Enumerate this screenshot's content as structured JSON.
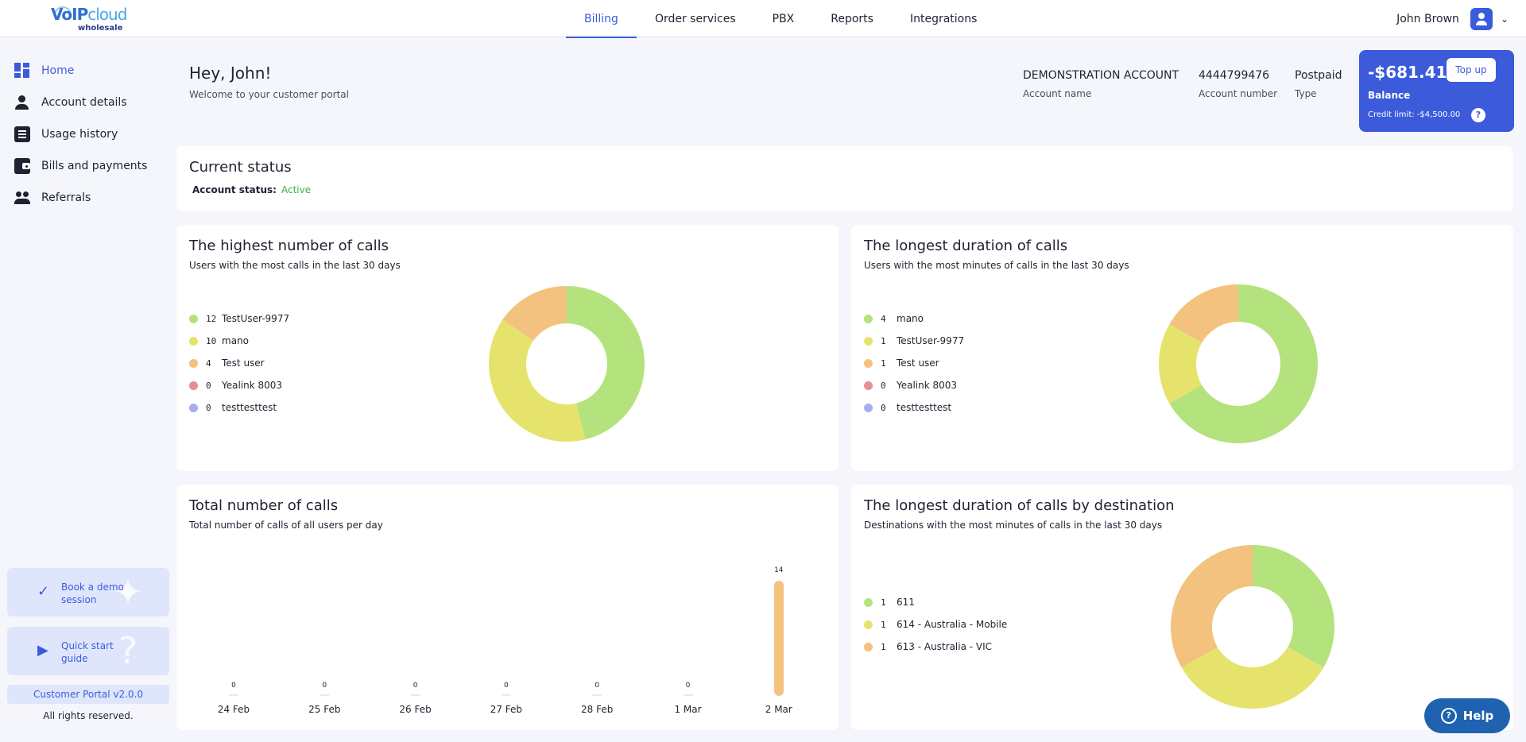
{
  "logo": {
    "brand_main": "VoIP",
    "brand_accent": "cloud",
    "brand_sub": "wholesale"
  },
  "topnav": {
    "tabs": [
      {
        "label": "Billing",
        "active": true
      },
      {
        "label": "Order services"
      },
      {
        "label": "PBX"
      },
      {
        "label": "Reports"
      },
      {
        "label": "Integrations"
      }
    ]
  },
  "user": {
    "name": "John Brown",
    "chevron": "⌄"
  },
  "sidebar": {
    "items": [
      {
        "label": "Home",
        "icon": "dashboard-icon"
      },
      {
        "label": "Account details",
        "icon": "person-icon"
      },
      {
        "label": "Usage history",
        "icon": "document-icon"
      },
      {
        "label": "Bills and payments",
        "icon": "wallet-icon"
      },
      {
        "label": "Referrals",
        "icon": "group-icon"
      }
    ],
    "promos": [
      {
        "label": "Book a demo session",
        "icon": "✓"
      },
      {
        "label": "Quick start guide",
        "icon": "▶"
      }
    ],
    "version": "Customer Portal v2.0.0",
    "rights": "All rights reserved."
  },
  "header": {
    "greeting": "Hey, John!",
    "subtitle": "Welcome to your customer portal",
    "account_name": "DEMONSTRATION ACCOUNT",
    "account_name_label": "Account name",
    "account_number": "4444799476",
    "account_number_label": "Account number",
    "type": "Postpaid",
    "type_label": "Type"
  },
  "balance": {
    "amount": "-$681.41",
    "label": "Balance",
    "credit_limit": "Credit limit: -$4,500.00",
    "topup_label": "Top up",
    "help_glyph": "?"
  },
  "status": {
    "title": "Current status",
    "label": "Account status:",
    "value": "Active"
  },
  "colors": {
    "green": "#b4e27d",
    "yellow": "#e6e36c",
    "orange": "#f2c27e",
    "red": "#e88f8f",
    "blue": "#a8acf3",
    "accent": "#3b5bdb"
  },
  "chart_data": [
    {
      "type": "pie",
      "title": "The highest number of calls",
      "subtitle": "Users with the most calls in the last 30 days",
      "labels": [
        "TestUser-9977",
        "mano",
        "Test user",
        "Yealink 8003",
        "testtesttest"
      ],
      "values": [
        12,
        10,
        4,
        0,
        0
      ]
    },
    {
      "type": "pie",
      "title": "The longest duration of calls",
      "subtitle": "Users with the most minutes of calls in the last 30 days",
      "labels": [
        "mano",
        "TestUser-9977",
        "Test user",
        "Yealink 8003",
        "testtesttest"
      ],
      "values": [
        4,
        1,
        1,
        0,
        0
      ]
    },
    {
      "type": "bar",
      "title": "Total number of calls",
      "subtitle": "Total number of calls of all users per day",
      "categories": [
        "24 Feb",
        "25 Feb",
        "26 Feb",
        "27 Feb",
        "28 Feb",
        "1 Mar",
        "2 Mar"
      ],
      "values": [
        0,
        0,
        0,
        0,
        0,
        0,
        14
      ],
      "ylim": [
        0,
        14
      ]
    },
    {
      "type": "pie",
      "title": "The longest duration of calls by destination",
      "subtitle": "Destinations with the most minutes of calls in the last 30 days",
      "labels": [
        "611",
        "614 - Australia - Mobile",
        "613 - Australia - VIC"
      ],
      "values": [
        1,
        1,
        1
      ]
    }
  ],
  "help_button": {
    "label": "Help",
    "glyph": "?"
  }
}
